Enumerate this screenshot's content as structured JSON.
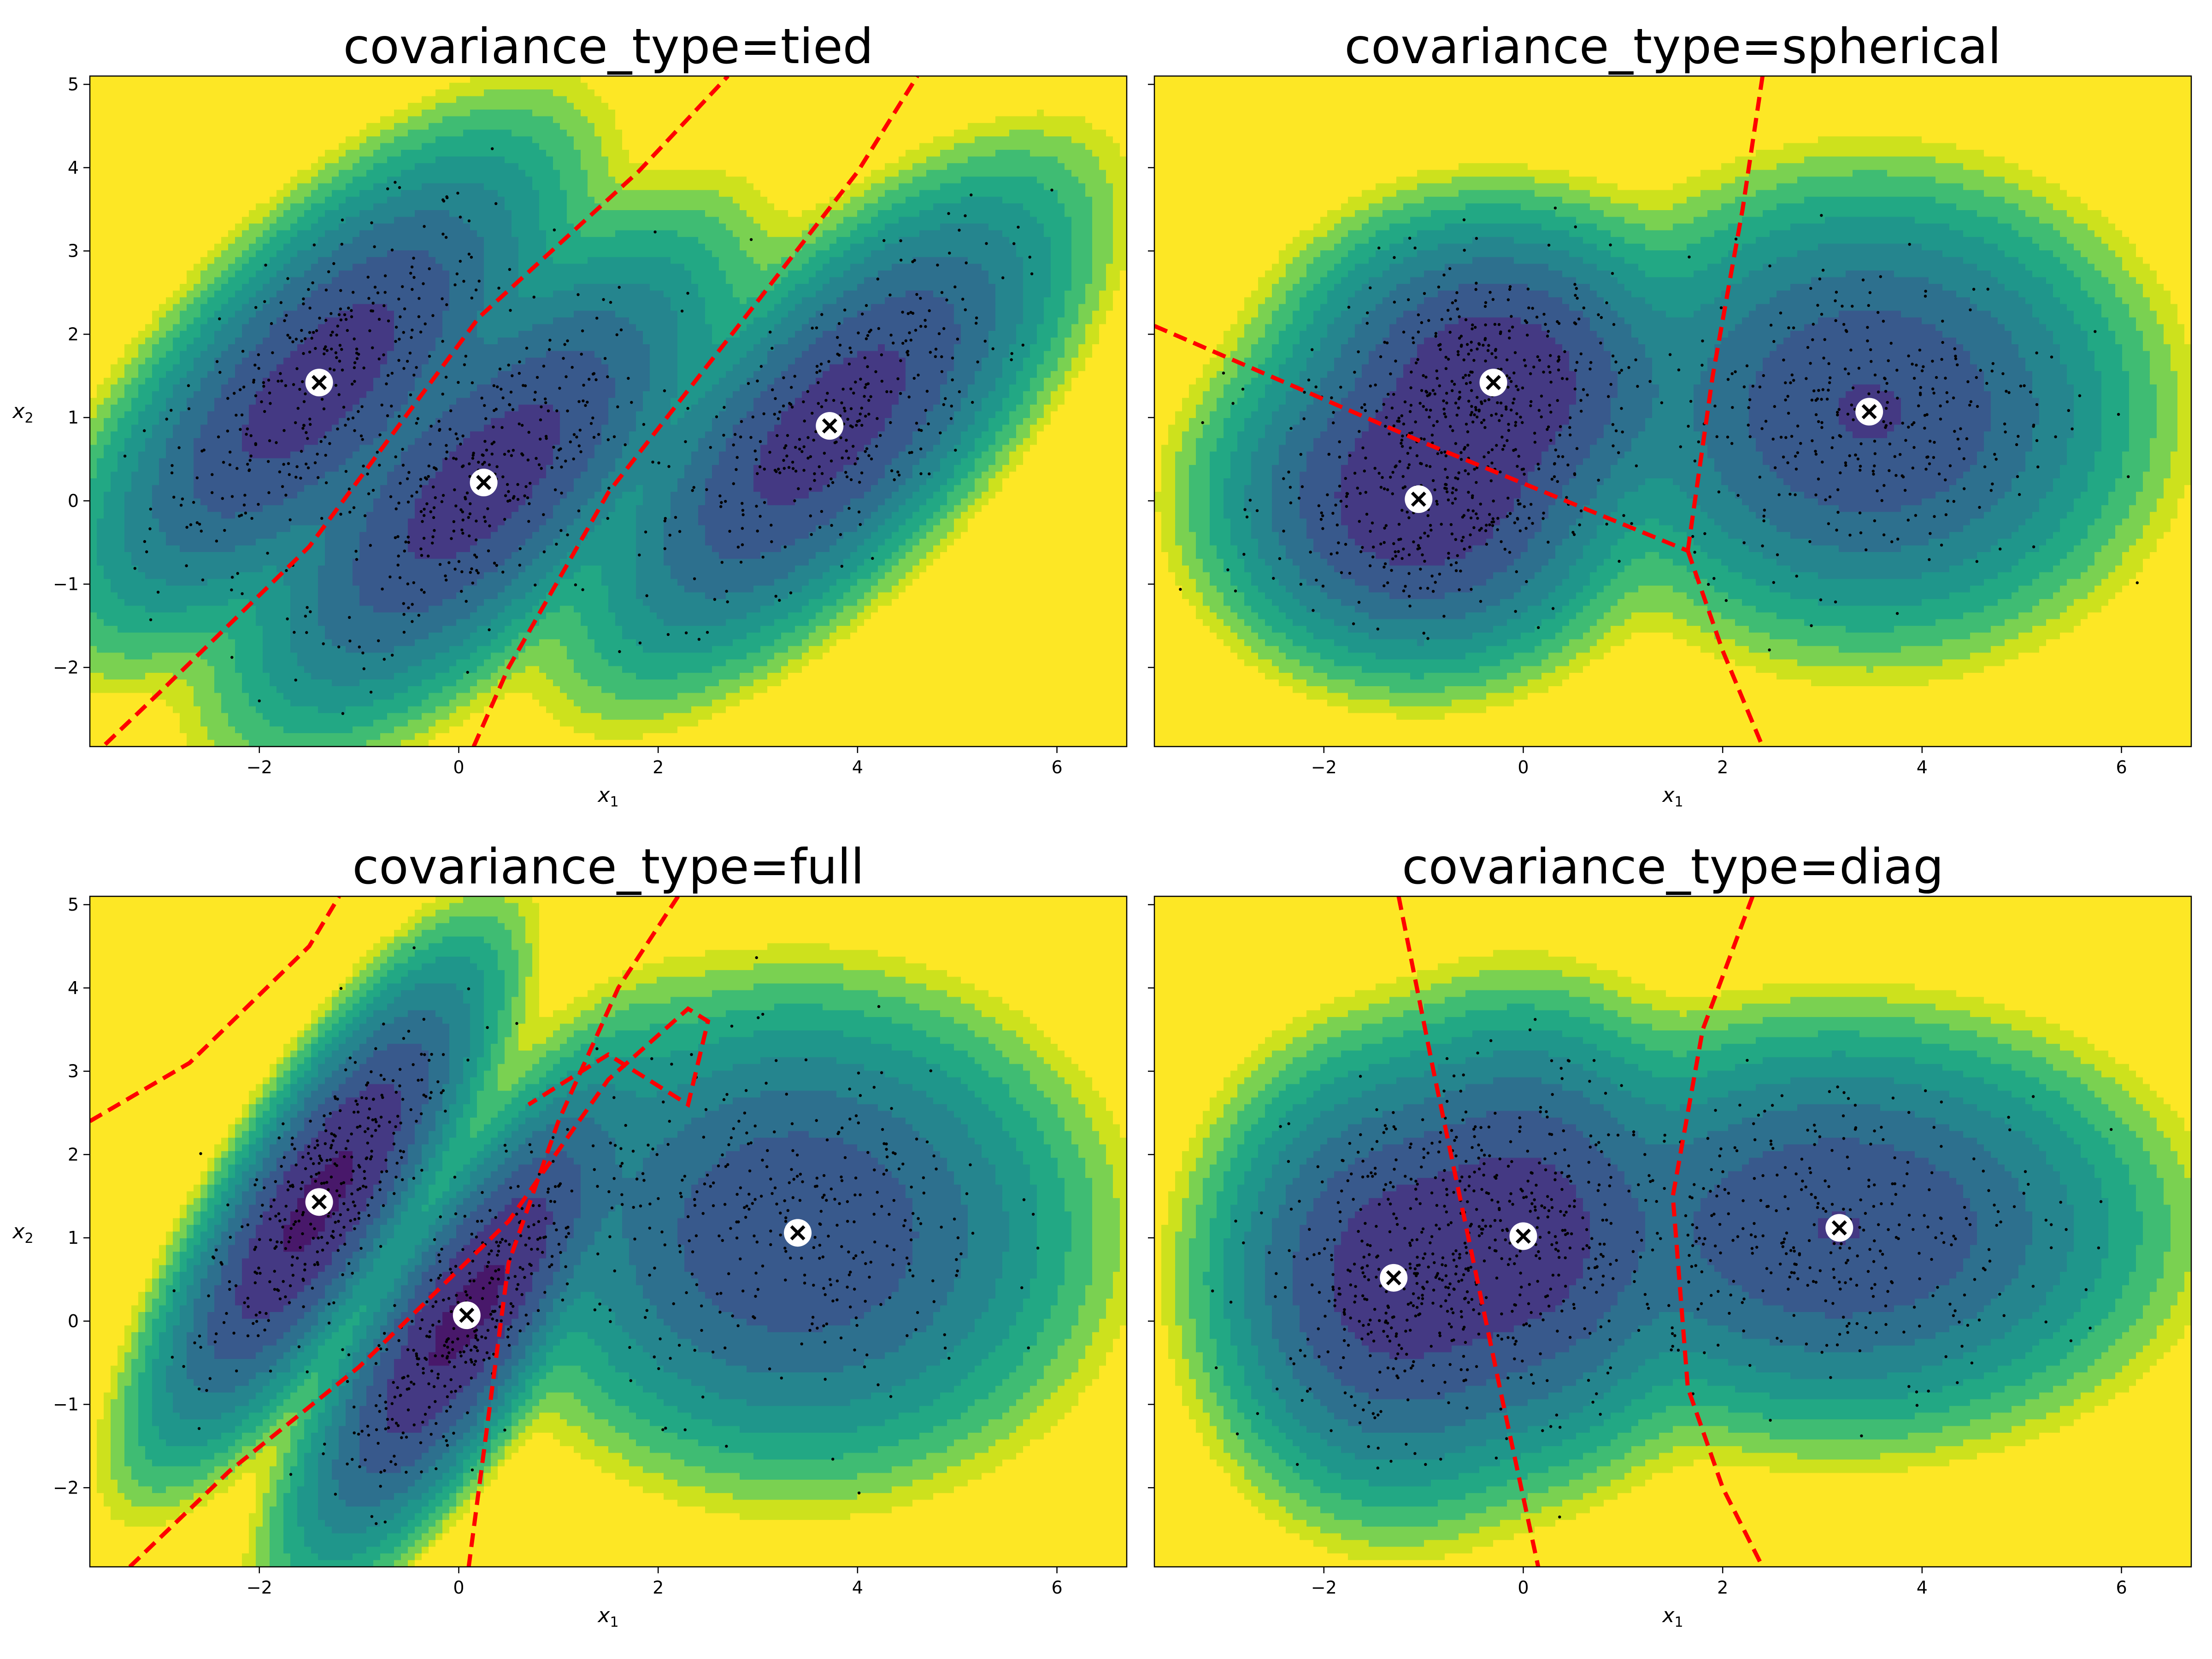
{
  "chart_data": [
    {
      "type": "contour",
      "title": "covariance_type=tied",
      "xlabel": "x",
      "xlabel_sub": "1",
      "ylabel": "x",
      "ylabel_sub": "2",
      "show_ylabel": true,
      "xlim": [
        -3.7,
        6.7
      ],
      "ylim": [
        -2.95,
        5.1
      ],
      "xticks": [
        -2,
        0,
        2,
        4,
        6
      ],
      "yticks": [
        -2,
        -1,
        0,
        1,
        2,
        3,
        4,
        5
      ],
      "show_ytick_labels": true,
      "grid": false,
      "centroids": [
        [
          -1.4,
          1.42
        ],
        [
          0.25,
          0.22
        ],
        [
          3.72,
          0.9
        ]
      ],
      "components": [
        {
          "mean": [
            -1.4,
            1.42
          ],
          "sx": 0.85,
          "sy": 1.05,
          "rho": 0.7,
          "w": 0.33
        },
        {
          "mean": [
            0.25,
            0.22
          ],
          "sx": 0.85,
          "sy": 1.05,
          "rho": 0.7,
          "w": 0.33
        },
        {
          "mean": [
            3.72,
            0.9
          ],
          "sx": 0.85,
          "sy": 1.05,
          "rho": 0.7,
          "w": 0.33
        }
      ],
      "decision_boundaries": [
        {
          "x": [
            -3.7,
            -3.0,
            -1.5,
            0.2,
            1.8,
            2.7
          ],
          "y": [
            -3.1,
            -2.3,
            -0.55,
            2.2,
            3.95,
            5.1
          ]
        },
        {
          "x": [
            0.15,
            0.5,
            1.5,
            3.0,
            4.0,
            4.6
          ],
          "y": [
            -2.95,
            -2.0,
            0.1,
            2.4,
            3.95,
            5.1
          ]
        }
      ]
    },
    {
      "type": "contour",
      "title": "covariance_type=spherical",
      "xlabel": "x",
      "xlabel_sub": "1",
      "ylabel": "",
      "ylabel_sub": "",
      "show_ylabel": false,
      "xlim": [
        -3.7,
        6.7
      ],
      "ylim": [
        -2.95,
        5.1
      ],
      "xticks": [
        -2,
        0,
        2,
        4,
        6
      ],
      "yticks": [
        -2,
        -1,
        0,
        1,
        2,
        3,
        4,
        5
      ],
      "show_ytick_labels": false,
      "grid": false,
      "centroids": [
        [
          -0.3,
          1.42
        ],
        [
          -1.05,
          0.02
        ],
        [
          3.47,
          1.07
        ]
      ],
      "components": [
        {
          "mean": [
            -0.3,
            1.42
          ],
          "sx": 0.72,
          "sy": 0.72,
          "rho": 0,
          "w": 0.33
        },
        {
          "mean": [
            -1.05,
            0.02
          ],
          "sx": 0.72,
          "sy": 0.72,
          "rho": 0,
          "w": 0.33
        },
        {
          "mean": [
            3.47,
            1.07
          ],
          "sx": 0.95,
          "sy": 0.95,
          "rho": 0,
          "w": 0.33
        }
      ],
      "decision_boundaries": [
        {
          "x": [
            -3.7,
            -1.0,
            1.65
          ],
          "y": [
            2.1,
            0.7,
            -0.6
          ]
        },
        {
          "x": [
            2.4,
            2.2,
            1.9,
            1.65
          ],
          "y": [
            5.1,
            3.5,
            1.5,
            -0.6
          ]
        },
        {
          "x": [
            1.65,
            2.0,
            2.4
          ],
          "y": [
            -0.6,
            -1.8,
            -2.95
          ]
        }
      ]
    },
    {
      "type": "contour",
      "title": "covariance_type=full",
      "xlabel": "x",
      "xlabel_sub": "1",
      "ylabel": "x",
      "ylabel_sub": "2",
      "show_ylabel": true,
      "xlim": [
        -3.7,
        6.7
      ],
      "ylim": [
        -2.95,
        5.1
      ],
      "xticks": [
        -2,
        0,
        2,
        4,
        6
      ],
      "yticks": [
        -2,
        -1,
        0,
        1,
        2,
        3,
        4,
        5
      ],
      "show_ytick_labels": true,
      "grid": false,
      "centroids": [
        [
          -1.4,
          1.43
        ],
        [
          0.08,
          0.07
        ],
        [
          3.4,
          1.06
        ]
      ],
      "components": [
        {
          "mean": [
            -1.4,
            1.43
          ],
          "sx": 0.6,
          "sy": 1.05,
          "rho": 0.8,
          "w": 0.33
        },
        {
          "mean": [
            0.08,
            0.07
          ],
          "sx": 0.6,
          "sy": 1.05,
          "rho": 0.8,
          "w": 0.33
        },
        {
          "mean": [
            3.4,
            1.06
          ],
          "sx": 1.0,
          "sy": 1.0,
          "rho": 0,
          "w": 0.33
        }
      ],
      "decision_boundaries": [
        {
          "x": [
            -3.7,
            -2.7,
            -1.5,
            -1.2
          ],
          "y": [
            2.4,
            3.1,
            4.5,
            5.1
          ]
        },
        {
          "x": [
            -3.3,
            -2.3,
            -1.0,
            0.5,
            1.5,
            2.3,
            2.5,
            2.3,
            1.5,
            0.7
          ],
          "y": [
            -2.95,
            -1.8,
            -0.55,
            1.2,
            2.9,
            3.75,
            3.6,
            2.6,
            3.2,
            2.6
          ]
        },
        {
          "x": [
            2.2,
            1.6,
            1.0,
            0.5,
            0.1
          ],
          "y": [
            5.1,
            4.0,
            2.4,
            0.7,
            -2.95
          ]
        }
      ]
    },
    {
      "type": "contour",
      "title": "covariance_type=diag",
      "xlabel": "x",
      "xlabel_sub": "1",
      "ylabel": "",
      "ylabel_sub": "",
      "show_ylabel": false,
      "xlim": [
        -3.7,
        6.7
      ],
      "ylim": [
        -2.95,
        5.1
      ],
      "xticks": [
        -2,
        0,
        2,
        4,
        6
      ],
      "yticks": [
        -2,
        -1,
        0,
        1,
        2,
        3,
        4,
        5
      ],
      "show_ytick_labels": false,
      "grid": false,
      "centroids": [
        [
          -1.3,
          0.52
        ],
        [
          0.0,
          1.02
        ],
        [
          3.17,
          1.12
        ]
      ],
      "components": [
        {
          "mean": [
            -1.3,
            0.52
          ],
          "sx": 0.65,
          "sy": 0.95,
          "rho": 0,
          "w": 0.33
        },
        {
          "mean": [
            0.0,
            1.02
          ],
          "sx": 0.65,
          "sy": 0.95,
          "rho": 0,
          "w": 0.33
        },
        {
          "mean": [
            3.17,
            1.12
          ],
          "sx": 1.1,
          "sy": 0.85,
          "rho": 0,
          "w": 0.33
        }
      ],
      "decision_boundaries": [
        {
          "x": [
            -1.25,
            -0.9,
            -0.55,
            -0.2,
            0.15
          ],
          "y": [
            5.1,
            3.0,
            1.0,
            -1.0,
            -2.95
          ]
        },
        {
          "x": [
            2.3,
            1.8,
            1.5,
            1.65,
            2.0,
            2.4
          ],
          "y": [
            5.1,
            3.5,
            1.5,
            -0.8,
            -2.0,
            -2.95
          ]
        }
      ]
    }
  ]
}
